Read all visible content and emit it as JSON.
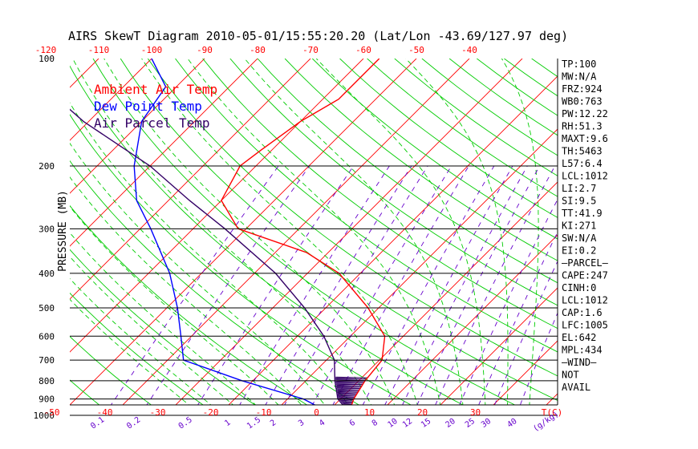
{
  "chart_data": {
    "type": "line",
    "title": "AIRS SkewT Diagram 2010-05-01/15:55:20.20 (Lat/Lon -43.69/127.97 deg)",
    "ylabel": "PRESSURE (MB)",
    "y_scale": "log",
    "ylim": [
      1050,
      100
    ],
    "pressure_ticks": [
      "100",
      "200",
      "300",
      "400",
      "500",
      "600",
      "700",
      "800",
      "900",
      "1000"
    ],
    "pressure_lines": [
      200,
      300,
      400,
      500,
      600,
      700,
      800,
      900,
      1000
    ],
    "top_temp_ticks": [
      "-120",
      "-110",
      "-100",
      "-90",
      "-80",
      "-70",
      "-60",
      "-50",
      "-40"
    ],
    "bottom_temp_ticks": [
      "-50",
      "-40",
      "-30",
      "-20",
      "-10",
      "0",
      "10",
      "20",
      "30"
    ],
    "bottom_temp_unit": "T(C)",
    "mixing_ratio_ticks": [
      "0.1",
      "0.2",
      "0.5",
      "1",
      "1.5",
      "2",
      "3",
      "4",
      "6",
      "8",
      "10",
      "12",
      "15",
      "20",
      "25",
      "30",
      "40"
    ],
    "mixing_ratio_unit": "(g/kg)",
    "legend": [
      {
        "label": "Ambient Air Temp",
        "color": "#ff0000"
      },
      {
        "label": "Dew Point Temp",
        "color": "#0000ff"
      },
      {
        "label": "Air Parcel Temp",
        "color": "#330066"
      }
    ],
    "series": [
      {
        "name": "Ambient Air Temp",
        "color": "#ff0000",
        "points": [
          [
            1030,
            7.5
          ],
          [
            1000,
            4.5
          ],
          [
            900,
            2.5
          ],
          [
            800,
            1.2
          ],
          [
            700,
            0.5
          ],
          [
            600,
            -3.5
          ],
          [
            500,
            -12
          ],
          [
            400,
            -24
          ],
          [
            350,
            -34
          ],
          [
            300,
            -51.5
          ],
          [
            250,
            -60
          ],
          [
            200,
            -63
          ],
          [
            180,
            -62
          ],
          [
            150,
            -60
          ],
          [
            130,
            -57
          ],
          [
            100,
            -57
          ]
        ]
      },
      {
        "name": "Dew Point Temp",
        "color": "#0000ff",
        "points": [
          [
            1030,
            7.5
          ],
          [
            1000,
            2
          ],
          [
            900,
            -7
          ],
          [
            800,
            -22
          ],
          [
            700,
            -37
          ],
          [
            600,
            -42
          ],
          [
            500,
            -48
          ],
          [
            400,
            -56
          ],
          [
            300,
            -68
          ],
          [
            250,
            -76
          ],
          [
            200,
            -83
          ],
          [
            150,
            -90
          ],
          [
            120,
            -92
          ],
          [
            100,
            -100
          ]
        ]
      },
      {
        "name": "Air Parcel Temp",
        "color": "#330066",
        "points": [
          [
            1030,
            7.5
          ],
          [
            1000,
            5.2
          ],
          [
            900,
            -0.5
          ],
          [
            800,
            -4.5
          ],
          [
            700,
            -8.5
          ],
          [
            600,
            -15
          ],
          [
            500,
            -24
          ],
          [
            400,
            -36
          ],
          [
            300,
            -54
          ],
          [
            250,
            -66
          ],
          [
            200,
            -80
          ],
          [
            150,
            -101
          ],
          [
            120,
            -115
          ],
          [
            100,
            -129
          ]
        ]
      }
    ],
    "cape_hatch_between": [
      1030,
      780
    ]
  },
  "indices": [
    "TP:100",
    "MW:N/A",
    "FRZ:924",
    "WB0:763",
    "PW:12.22",
    "RH:51.3",
    "MAXT:9.6",
    "TH:5463",
    "L57:6.4",
    "LCL:1012",
    "LI:2.7",
    "SI:9.5",
    "TT:41.9",
    "KI:271",
    "SW:N/A",
    "EI:0.2",
    "–PARCEL–",
    "CAPE:247",
    "CINH:0",
    "LCL:1012",
    "CAP:1.6",
    "LFC:1005",
    "EL:642",
    "MPL:434",
    "–WIND–",
    "NOT",
    "AVAIL"
  ],
  "colors": {
    "isotherm": "#ff0000",
    "dry_adiabat": "#00cc00",
    "moist_adiabat": "#00cc00",
    "mixing_ratio": "#6600cc",
    "axis": "#000000"
  }
}
